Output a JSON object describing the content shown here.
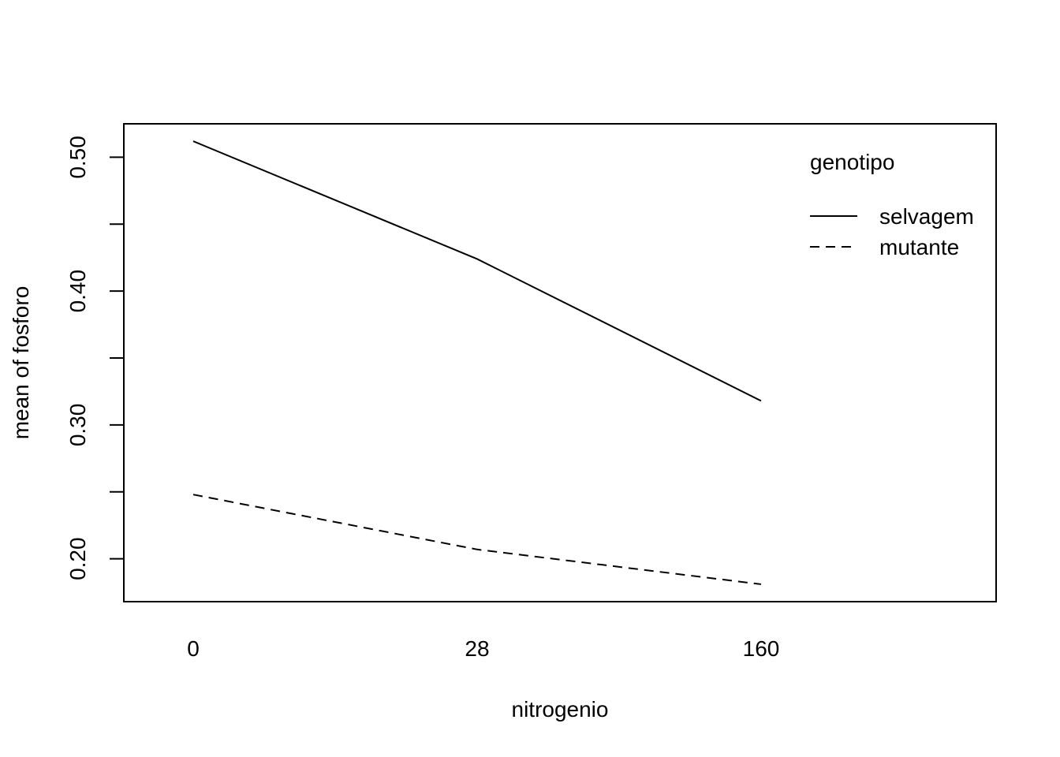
{
  "chart_data": {
    "type": "line",
    "title": "",
    "xlabel": "nitrogenio",
    "ylabel": "mean of  fosforo",
    "categories": [
      "0",
      "28",
      "160"
    ],
    "yticks": [
      "0.20",
      "0.30",
      "0.40",
      "0.50"
    ],
    "ytick_values": [
      0.2,
      0.3,
      0.4,
      0.5
    ],
    "yminor_values": [
      0.25,
      0.35,
      0.45
    ],
    "ylim": [
      0.168,
      0.525
    ],
    "grid": false,
    "legend": {
      "title": "genotipo",
      "placement": "top-right"
    },
    "series": [
      {
        "name": "selvagem",
        "line_style": "solid",
        "values": [
          0.512,
          0.424,
          0.318
        ]
      },
      {
        "name": "mutante",
        "line_style": "dashed",
        "values": [
          0.248,
          0.207,
          0.181
        ]
      }
    ],
    "colors": {
      "line": "#000000",
      "background": "#ffffff"
    }
  }
}
